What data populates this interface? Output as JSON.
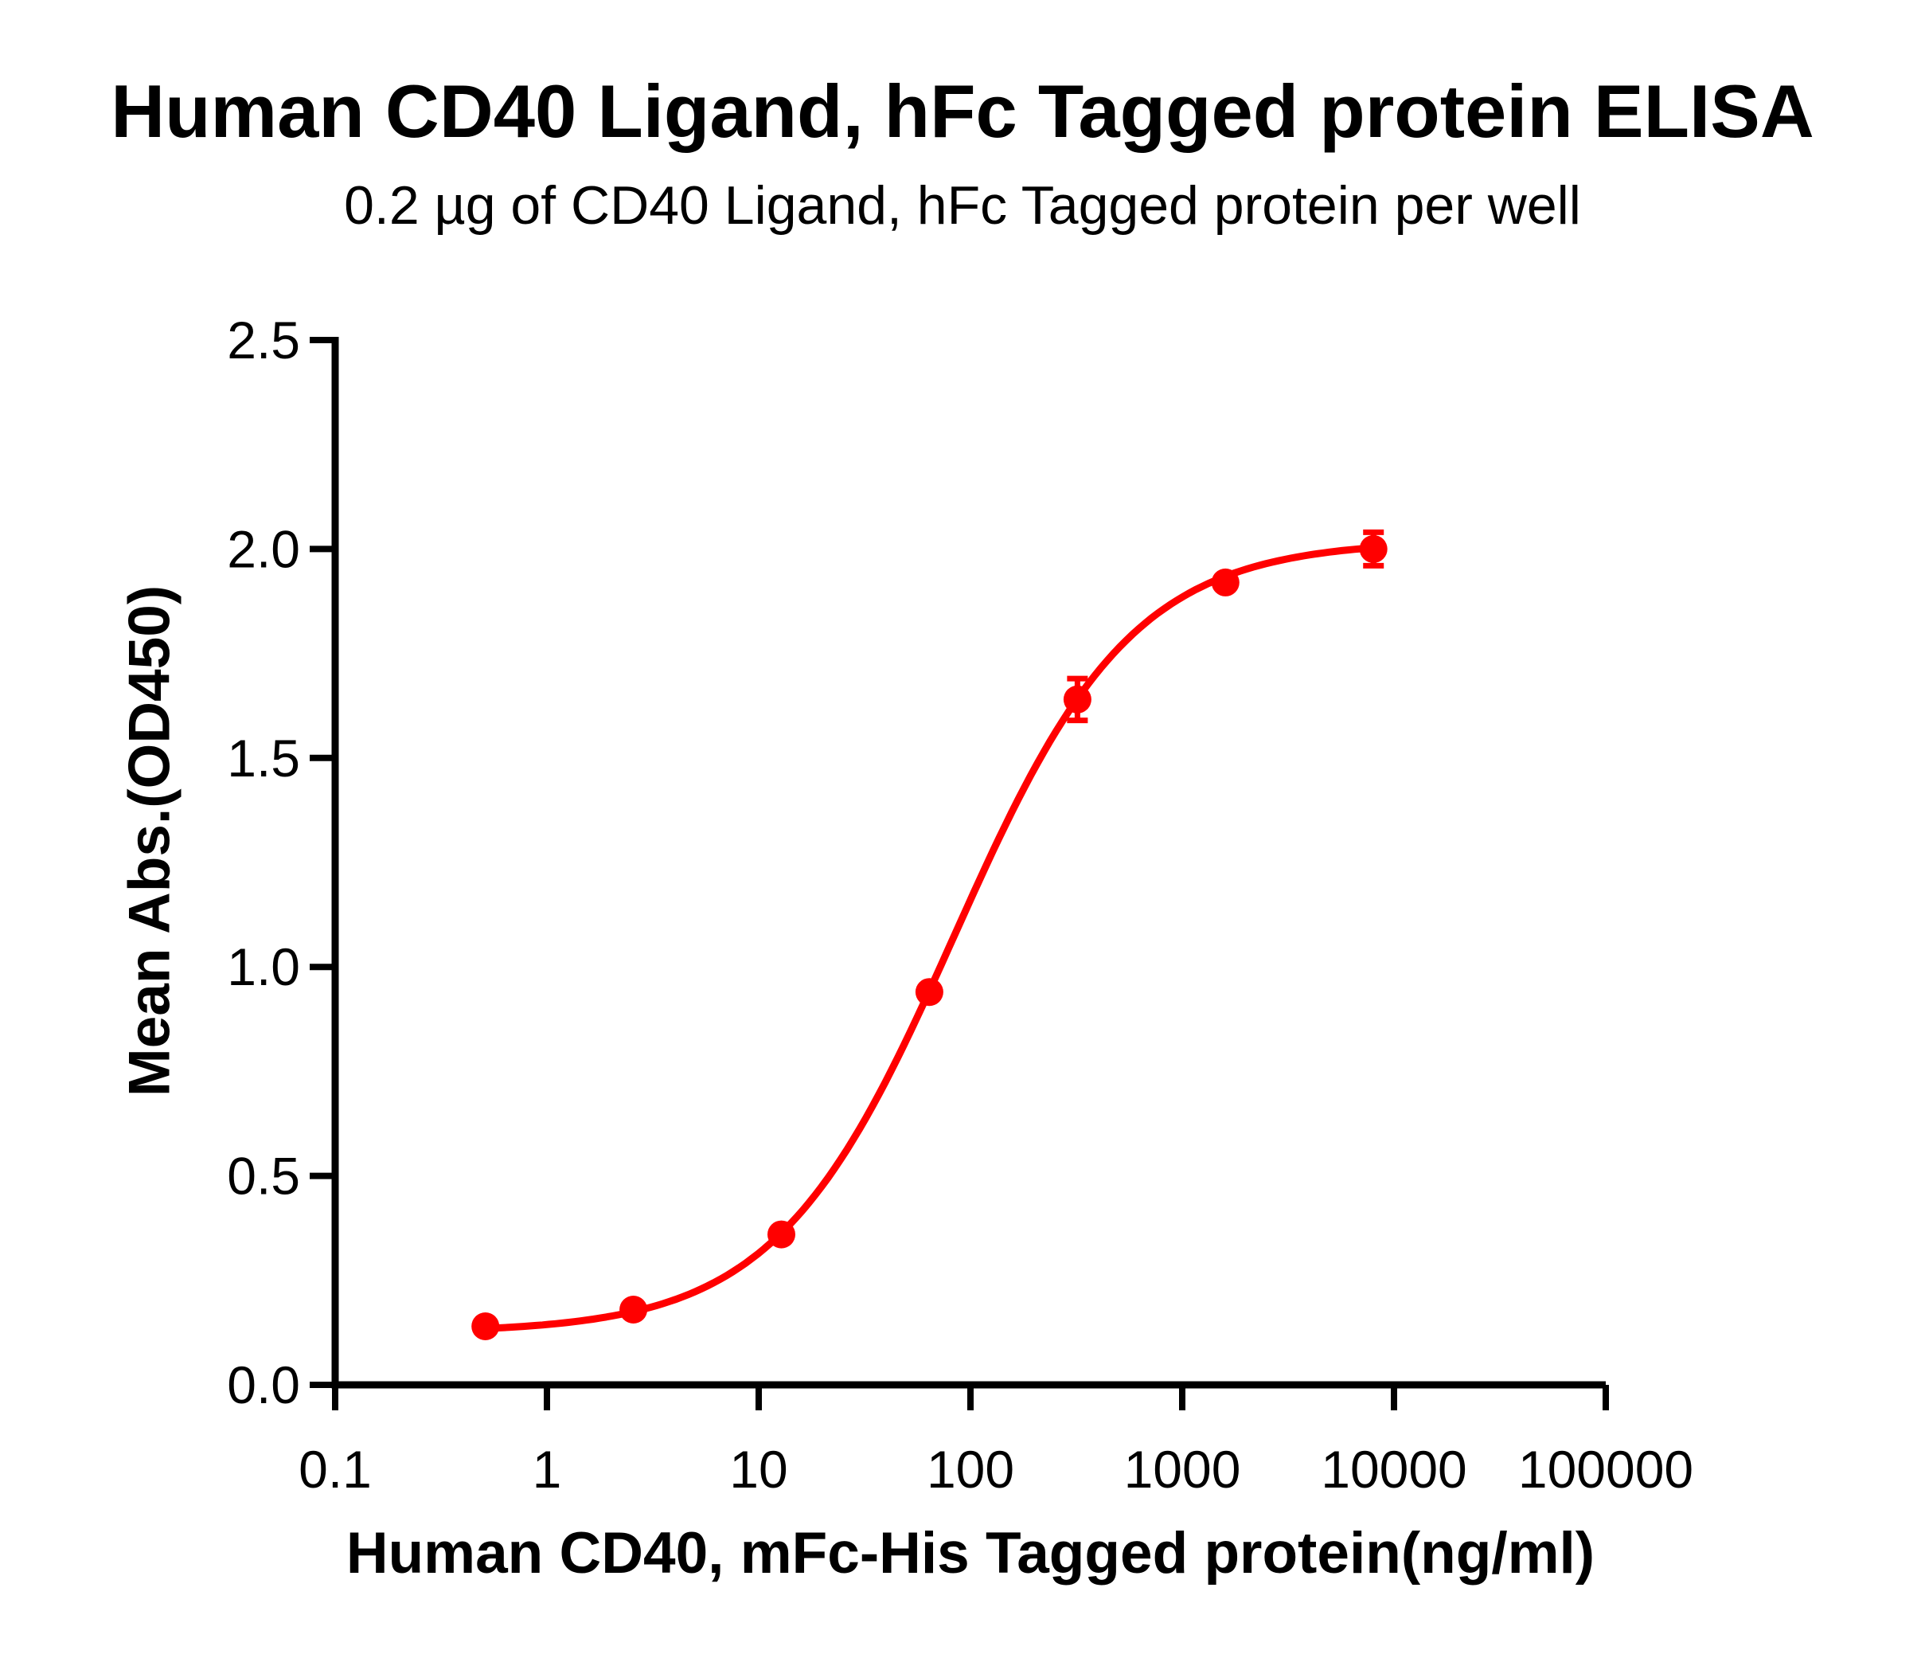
{
  "page": {
    "background": "#FFFFFF",
    "text_color": "#000000"
  },
  "chart_data": {
    "type": "scatter",
    "subtype": "dose-response-curve",
    "title": "Human CD40 Ligand, hFc Tagged protein ELISA",
    "subtitle": "0.2 µg of CD40 Ligand, hFc Tagged protein per well",
    "xlabel": "Human CD40, mFc-His Tagged protein(ng/ml)",
    "ylabel": "Mean Abs.(OD450)",
    "x_scale": "log10",
    "xlim_log": [
      -1,
      5
    ],
    "ylim": [
      0,
      2.5
    ],
    "x_tick_values": [
      0.1,
      1,
      10,
      100,
      1000,
      10000,
      100000
    ],
    "x_tick_labels": [
      "0.1",
      "1",
      "10",
      "100",
      "1000",
      "10000",
      "100000"
    ],
    "y_tick_values": [
      0,
      0.5,
      1,
      1.5,
      2,
      2.5
    ],
    "y_tick_labels": [
      "0.0",
      "0.5",
      "1.0",
      "1.5",
      "2.0",
      "2.5"
    ],
    "grid": false,
    "legend": "none",
    "series": [
      {
        "name": "Human CD40 Ligand, hFc Tagged protein",
        "color": "#FF0000",
        "marker": "circle",
        "x_ng_ml": [
          0.512,
          2.56,
          12.8,
          64,
          320,
          1600,
          8000
        ],
        "y_od450": [
          0.14,
          0.18,
          0.36,
          0.94,
          1.64,
          1.92,
          2.0
        ],
        "y_error": [
          0,
          0,
          0,
          0,
          0.05,
          0,
          0.04
        ]
      }
    ],
    "fit_curve": {
      "model": "4PL",
      "bottom": 0.125,
      "top": 2.02,
      "ec50": 83.5,
      "hill": 1.034
    }
  }
}
